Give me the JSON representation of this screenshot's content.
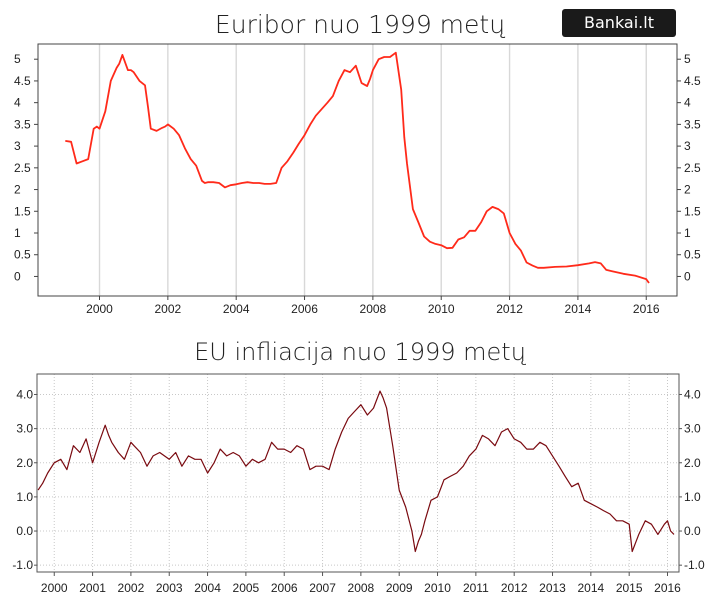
{
  "brand": {
    "label": "Bankai.lt"
  },
  "chart_data": [
    {
      "type": "line",
      "title": "Euribor nuo 1999 metų",
      "xlabel": "",
      "ylabel": "",
      "x_ticks": [
        "2000",
        "2002",
        "2004",
        "2006",
        "2008",
        "2010",
        "2012",
        "2014",
        "2016"
      ],
      "y_ticks": [
        "5",
        "4.5",
        "4",
        "3.5",
        "3",
        "2.5",
        "2",
        "1.5",
        "1",
        "0.5",
        "0"
      ],
      "xlim": [
        1998.2,
        2016.9
      ],
      "ylim": [
        -0.45,
        5.35
      ],
      "grid": "vertical",
      "line_color": "#ff2a1a",
      "series": [
        {
          "x": [
            1999.0,
            1999.17,
            1999.33,
            1999.5,
            1999.67,
            1999.83,
            1999.92,
            2000.0,
            2000.17,
            2000.33,
            2000.5,
            2000.58,
            2000.67,
            2000.83,
            2000.92,
            2001.0,
            2001.17,
            2001.33,
            2001.42,
            2001.5,
            2001.67,
            2001.83,
            2001.92,
            2002.0,
            2002.17,
            2002.33,
            2002.5,
            2002.67,
            2002.83,
            2003.0,
            2003.08,
            2003.17,
            2003.33,
            2003.5,
            2003.67,
            2003.83,
            2004.0,
            2004.17,
            2004.33,
            2004.5,
            2004.67,
            2004.83,
            2005.0,
            2005.17,
            2005.33,
            2005.5,
            2005.67,
            2005.83,
            2006.0,
            2006.17,
            2006.33,
            2006.5,
            2006.67,
            2006.83,
            2007.0,
            2007.17,
            2007.33,
            2007.5,
            2007.67,
            2007.83,
            2007.92,
            2008.0,
            2008.17,
            2008.33,
            2008.5,
            2008.67,
            2008.83,
            2008.92,
            2009.0,
            2009.17,
            2009.33,
            2009.5,
            2009.67,
            2009.83,
            2010.0,
            2010.17,
            2010.33,
            2010.5,
            2010.67,
            2010.83,
            2011.0,
            2011.17,
            2011.33,
            2011.5,
            2011.67,
            2011.83,
            2012.0,
            2012.17,
            2012.33,
            2012.5,
            2012.67,
            2012.83,
            2013.0,
            2013.33,
            2013.67,
            2014.0,
            2014.33,
            2014.5,
            2014.67,
            2014.83,
            2015.0,
            2015.33,
            2015.67,
            2016.0,
            2016.08
          ],
          "values": [
            3.12,
            3.1,
            2.6,
            2.65,
            2.7,
            3.4,
            3.45,
            3.4,
            3.8,
            4.5,
            4.8,
            4.9,
            5.1,
            4.75,
            4.75,
            4.7,
            4.5,
            4.4,
            3.9,
            3.4,
            3.35,
            3.42,
            3.45,
            3.5,
            3.4,
            3.25,
            2.95,
            2.7,
            2.55,
            2.2,
            2.15,
            2.17,
            2.17,
            2.15,
            2.05,
            2.1,
            2.12,
            2.15,
            2.17,
            2.15,
            2.15,
            2.13,
            2.13,
            2.15,
            2.5,
            2.65,
            2.85,
            3.05,
            3.25,
            3.5,
            3.7,
            3.85,
            4.0,
            4.15,
            4.5,
            4.75,
            4.7,
            4.85,
            4.45,
            4.38,
            4.55,
            4.75,
            5.0,
            5.05,
            5.05,
            5.15,
            4.3,
            3.2,
            2.6,
            1.55,
            1.25,
            0.92,
            0.8,
            0.75,
            0.72,
            0.65,
            0.66,
            0.85,
            0.9,
            1.05,
            1.05,
            1.25,
            1.5,
            1.6,
            1.55,
            1.45,
            1.0,
            0.75,
            0.6,
            0.32,
            0.25,
            0.2,
            0.2,
            0.22,
            0.23,
            0.26,
            0.3,
            0.33,
            0.3,
            0.15,
            0.12,
            0.06,
            0.02,
            -0.06,
            -0.15
          ]
        }
      ]
    },
    {
      "type": "line",
      "title": "EU infliacija nuo 1999 metų",
      "xlabel": "",
      "ylabel": "",
      "x_ticks": [
        "2000",
        "2001",
        "2002",
        "2003",
        "2004",
        "2005",
        "2006",
        "2007",
        "2008",
        "2009",
        "2010",
        "2011",
        "2012",
        "2013",
        "2014",
        "2015",
        "2016"
      ],
      "y_ticks": [
        "4.0",
        "3.0",
        "2.0",
        "1.0",
        "0.0",
        "-1.0"
      ],
      "xlim": [
        1999.55,
        2016.3
      ],
      "ylim": [
        -1.2,
        4.6
      ],
      "grid": "both-dotted",
      "line_color": "#7a0a10",
      "series": [
        {
          "x": [
            1999.58,
            1999.7,
            1999.83,
            2000.0,
            2000.17,
            2000.33,
            2000.5,
            2000.67,
            2000.83,
            2001.0,
            2001.17,
            2001.33,
            2001.42,
            2001.5,
            2001.67,
            2001.83,
            2002.0,
            2002.08,
            2002.25,
            2002.42,
            2002.58,
            2002.75,
            2003.0,
            2003.17,
            2003.33,
            2003.5,
            2003.67,
            2003.83,
            2004.0,
            2004.17,
            2004.33,
            2004.5,
            2004.67,
            2004.83,
            2005.0,
            2005.17,
            2005.33,
            2005.5,
            2005.67,
            2005.83,
            2006.0,
            2006.17,
            2006.33,
            2006.5,
            2006.67,
            2006.83,
            2007.0,
            2007.17,
            2007.33,
            2007.5,
            2007.67,
            2007.83,
            2008.0,
            2008.17,
            2008.33,
            2008.5,
            2008.58,
            2008.67,
            2008.83,
            2009.0,
            2009.17,
            2009.33,
            2009.42,
            2009.5,
            2009.58,
            2009.67,
            2009.83,
            2010.0,
            2010.17,
            2010.33,
            2010.5,
            2010.67,
            2010.83,
            2011.0,
            2011.17,
            2011.33,
            2011.5,
            2011.67,
            2011.83,
            2012.0,
            2012.17,
            2012.33,
            2012.5,
            2012.67,
            2012.83,
            2013.0,
            2013.17,
            2013.33,
            2013.5,
            2013.67,
            2013.83,
            2014.0,
            2014.17,
            2014.33,
            2014.5,
            2014.67,
            2014.83,
            2015.0,
            2015.08,
            2015.25,
            2015.42,
            2015.58,
            2015.75,
            2015.92,
            2016.0,
            2016.08,
            2016.17
          ],
          "values": [
            1.2,
            1.4,
            1.7,
            2.0,
            2.1,
            1.8,
            2.5,
            2.3,
            2.7,
            2.0,
            2.6,
            3.1,
            2.8,
            2.6,
            2.3,
            2.1,
            2.6,
            2.5,
            2.3,
            1.9,
            2.2,
            2.3,
            2.1,
            2.3,
            1.9,
            2.2,
            2.1,
            2.1,
            1.7,
            2.0,
            2.4,
            2.2,
            2.3,
            2.2,
            1.9,
            2.1,
            2.0,
            2.1,
            2.6,
            2.4,
            2.4,
            2.3,
            2.5,
            2.4,
            1.8,
            1.9,
            1.9,
            1.8,
            2.4,
            2.9,
            3.3,
            3.5,
            3.7,
            3.4,
            3.6,
            4.1,
            3.9,
            3.6,
            2.5,
            1.2,
            0.7,
            0.0,
            -0.6,
            -0.3,
            -0.1,
            0.3,
            0.9,
            1.0,
            1.5,
            1.6,
            1.7,
            1.9,
            2.2,
            2.4,
            2.8,
            2.7,
            2.5,
            2.9,
            3.0,
            2.7,
            2.6,
            2.4,
            2.4,
            2.6,
            2.5,
            2.2,
            1.9,
            1.6,
            1.3,
            1.4,
            0.9,
            0.8,
            0.7,
            0.6,
            0.5,
            0.3,
            0.3,
            0.2,
            -0.6,
            -0.1,
            0.3,
            0.2,
            -0.1,
            0.2,
            0.3,
            0.0,
            -0.1
          ]
        }
      ]
    }
  ]
}
